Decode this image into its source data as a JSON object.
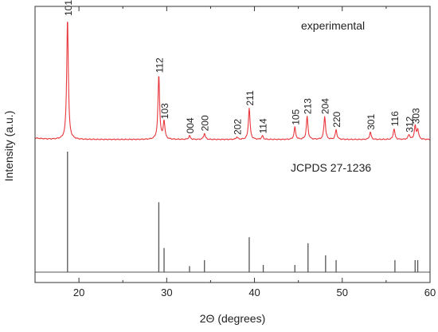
{
  "chart_data": {
    "type": "line",
    "xlabel": "2Θ (degrees)",
    "ylabel": "Intensity (a.u.)",
    "xlim": [
      15,
      60
    ],
    "x_ticks": [
      20,
      30,
      40,
      50,
      60
    ],
    "grid": false,
    "line_color": "#e8383d",
    "stick_color": "#555555",
    "panels": [
      {
        "name": "experimental",
        "label": "experimental"
      },
      {
        "name": "reference",
        "label": "JCPDS 27-1236"
      }
    ],
    "experimental_peaks": [
      {
        "x": 18.7,
        "y": 100,
        "label": "101"
      },
      {
        "x": 29.1,
        "y": 53,
        "label": "112"
      },
      {
        "x": 29.7,
        "y": 15,
        "label": "103"
      },
      {
        "x": 32.6,
        "y": 3,
        "label": "004"
      },
      {
        "x": 34.3,
        "y": 5,
        "label": "200"
      },
      {
        "x": 38.0,
        "y": 2,
        "label": "202"
      },
      {
        "x": 39.4,
        "y": 26,
        "label": "211"
      },
      {
        "x": 40.9,
        "y": 3,
        "label": "114"
      },
      {
        "x": 44.6,
        "y": 10,
        "label": "105"
      },
      {
        "x": 46.0,
        "y": 19,
        "label": "213"
      },
      {
        "x": 48.0,
        "y": 19,
        "label": "204"
      },
      {
        "x": 49.3,
        "y": 8,
        "label": "220"
      },
      {
        "x": 53.2,
        "y": 6,
        "label": "301"
      },
      {
        "x": 55.9,
        "y": 9,
        "label": "116"
      },
      {
        "x": 57.6,
        "y": 4,
        "label": "312"
      },
      {
        "x": 58.3,
        "y": 11,
        "label": "303"
      },
      {
        "x": 58.6,
        "y": 8,
        "label": ""
      }
    ],
    "reference_sticks": [
      {
        "x": 18.7,
        "y": 100
      },
      {
        "x": 29.1,
        "y": 58
      },
      {
        "x": 29.7,
        "y": 20
      },
      {
        "x": 32.6,
        "y": 5
      },
      {
        "x": 34.3,
        "y": 10
      },
      {
        "x": 39.4,
        "y": 29
      },
      {
        "x": 41.0,
        "y": 6
      },
      {
        "x": 44.6,
        "y": 6
      },
      {
        "x": 46.1,
        "y": 24
      },
      {
        "x": 48.1,
        "y": 14
      },
      {
        "x": 49.3,
        "y": 10
      },
      {
        "x": 56.0,
        "y": 10
      },
      {
        "x": 58.3,
        "y": 10
      },
      {
        "x": 58.6,
        "y": 10
      }
    ]
  }
}
